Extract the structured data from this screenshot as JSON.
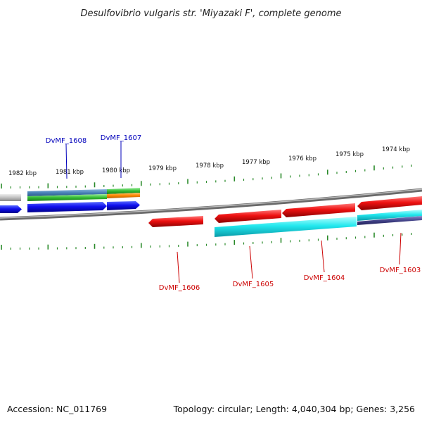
{
  "title": "Desulfovibrio vulgaris str. 'Miyazaki F', complete genome",
  "footer": {
    "accession": "Accession: NC_011769",
    "summary": "Topology: circular; Length: 4,040,304 bp; Genes: 3,256"
  },
  "ruler": {
    "labels": [
      "1982 kbp",
      "1981 kbp",
      "1980 kbp",
      "1979 kbp",
      "1978 kbp",
      "1977 kbp",
      "1976 kbp",
      "1975 kbp",
      "1974 kbp"
    ]
  },
  "genes": [
    {
      "label": "DvMF_1608",
      "color": "#0000bb"
    },
    {
      "label": "DvMF_1607",
      "color": "#0000bb"
    },
    {
      "label": "DvMF_1606",
      "color": "#cc0000"
    },
    {
      "label": "DvMF_1605",
      "color": "#cc0000"
    },
    {
      "label": "DvMF_1604",
      "color": "#cc0000"
    },
    {
      "label": "DvMF_1603",
      "color": "#cc0000"
    }
  ],
  "colors": {
    "backbone": "#8a8a8a",
    "tick": "#2a8a2a",
    "forward_cds": "#1111ee",
    "reverse_cds": "#ee1111",
    "cyan_feature": "#22eeee",
    "green_feature": "#44cc44",
    "orange_feature": "#ff8800",
    "steel_feature": "#4a88bb",
    "navy_feature": "#444488",
    "grey_feature": "#c0c0c0"
  }
}
